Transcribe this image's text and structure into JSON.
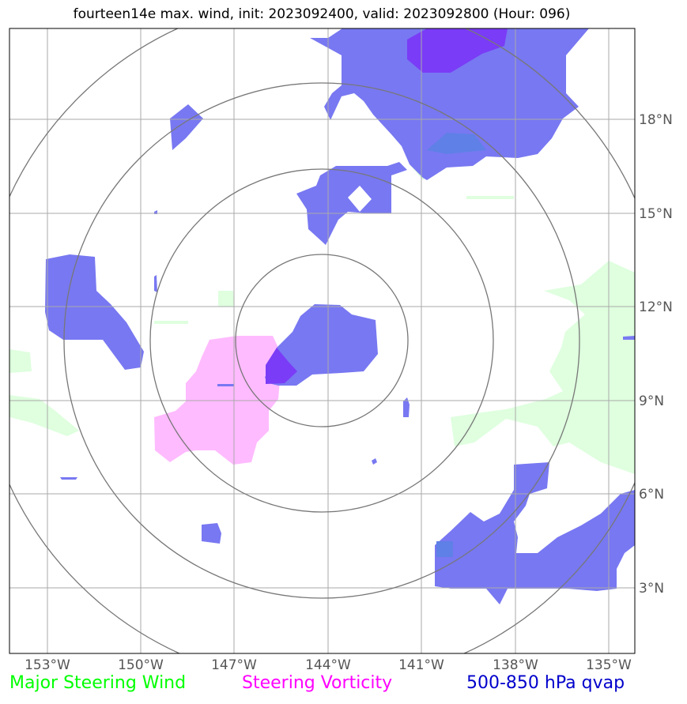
{
  "title": "fourteen14e max. wind, init: 2023092400, valid: 2023092800 (Hour: 096)",
  "lon_labels": [
    "153°W",
    "150°W",
    "147°W",
    "144°W",
    "141°W",
    "138°W",
    "135°W"
  ],
  "lat_labels": [
    "18°N",
    "15°N",
    "12°N",
    "9°N",
    "6°N",
    "3°N"
  ],
  "legend": {
    "major_steering_wind": {
      "label": "Major Steering Wind",
      "color": "#00ff00"
    },
    "steering_vorticity": {
      "label": "Steering Vorticity",
      "color": "#ff00ff"
    },
    "qvap": {
      "label": "500-850 hPa qvap",
      "color": "#0000cc"
    }
  },
  "colors": {
    "qvap_fill": "#7878f2",
    "qvap_dense": "#7a3cf6",
    "vorticity_fill": "#ffbbff",
    "wind_fill": "#dfffdf",
    "grid": "#aaaaaa",
    "range_rings": "#777777"
  },
  "map_extent": {
    "lon_min": -154.2,
    "lon_max": -134.2,
    "lat_min": 1.0,
    "lat_max": 21.0
  },
  "storm_center": {
    "lon": -144.2,
    "lat": 11.0
  },
  "range_ring_radii_deg": [
    2.75,
    5.5,
    8.25,
    11.0
  ]
}
